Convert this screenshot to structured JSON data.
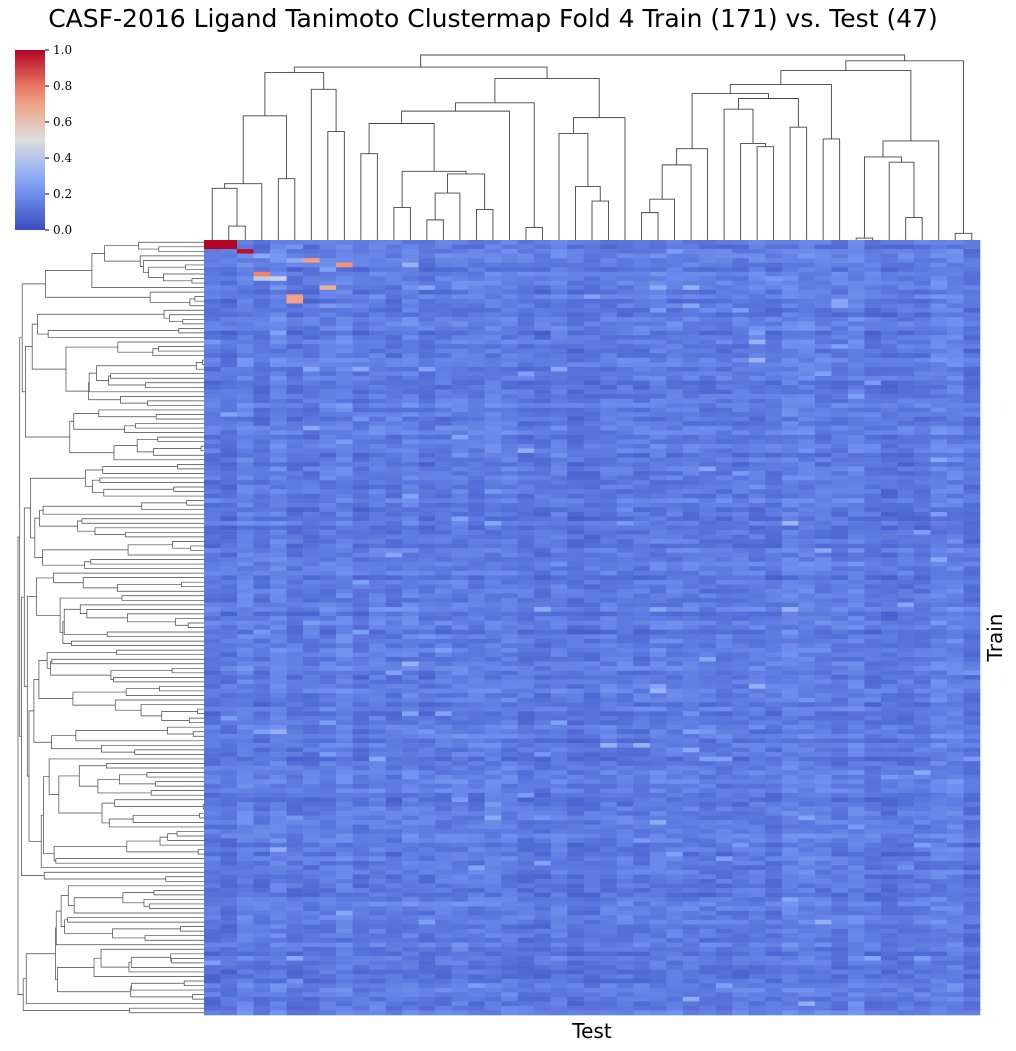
{
  "chart_data": {
    "type": "heatmap",
    "title": "CASF-2016 Ligand Tanimoto Clustermap Fold 4 Train (171) vs. Test (47)",
    "xlabel": "Test",
    "ylabel": "Train",
    "n_rows": 171,
    "n_cols": 47,
    "value_range": [
      0.0,
      1.0
    ],
    "colormap": "coolwarm",
    "colorbar_ticks": [
      "0.0",
      "0.2",
      "0.4",
      "0.6",
      "0.8",
      "1.0"
    ],
    "typical_value_range": [
      0.05,
      0.3
    ],
    "high_similarity_cells": [
      {
        "row": 0,
        "col": 0,
        "value": 1.0
      },
      {
        "row": 0,
        "col": 1,
        "value": 1.0
      },
      {
        "row": 1,
        "col": 0,
        "value": 1.0
      },
      {
        "row": 1,
        "col": 1,
        "value": 1.0
      },
      {
        "row": 2,
        "col": 2,
        "value": 0.98
      },
      {
        "row": 4,
        "col": 6,
        "value": 0.72
      },
      {
        "row": 5,
        "col": 8,
        "value": 0.75
      },
      {
        "row": 7,
        "col": 3,
        "value": 0.78
      },
      {
        "row": 8,
        "col": 3,
        "value": 0.42
      },
      {
        "row": 8,
        "col": 4,
        "value": 0.45
      },
      {
        "row": 10,
        "col": 7,
        "value": 0.66
      },
      {
        "row": 12,
        "col": 5,
        "value": 0.7
      },
      {
        "row": 13,
        "col": 5,
        "value": 0.7
      }
    ],
    "dendrograms": [
      "rows",
      "columns"
    ]
  },
  "colors": {
    "low": "#3b4cc0",
    "mid": "#dddddd",
    "high": "#b40426",
    "dendrogram_line": "#444444"
  }
}
